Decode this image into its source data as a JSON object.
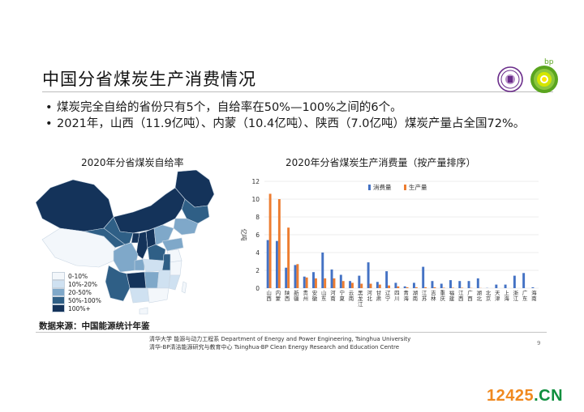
{
  "slide": {
    "title": "中国分省煤炭生产消费情况",
    "bullets": [
      "煤炭完全自给的省份只有5个，自给率在50%—100%之间的6个。",
      "2021年，山西（11.9亿吨）、内蒙（10.4亿吨）、陕西（7.0亿吨）煤炭产量占全国72%。"
    ],
    "source": "数据来源：中国能源统计年鉴",
    "footer": [
      "清华大学 能源与动力工程系  Department of Energy and Power Engineering, Tsinghua University",
      "清华-BP清洁能源研究与教育中心  Tsinghua-BP  Clean Energy Research and Education Centre"
    ],
    "page_number": "9",
    "logo_text": "bp",
    "watermark": {
      "num": "12425",
      "suffix": ".CN"
    }
  },
  "map": {
    "title": "2020年分省煤炭自给率",
    "legend": [
      {
        "label": "0-10%",
        "color": "#f3f7fb"
      },
      {
        "label": "10%-20%",
        "color": "#cfe1f1"
      },
      {
        "label": "20-50%",
        "color": "#7fa8c9"
      },
      {
        "label": "50%-100%",
        "color": "#2f5f86"
      },
      {
        "label": "100%+",
        "color": "#14335a"
      }
    ]
  },
  "chart_data": {
    "type": "bar",
    "title": "2020年分省煤炭生产消费量（按产量排序）",
    "ylabel": "亿吨",
    "ylim": [
      0,
      12
    ],
    "yticks": [
      0,
      2,
      4,
      6,
      8,
      10,
      12
    ],
    "legend_position": "top-center",
    "categories": [
      "山西",
      "内蒙",
      "陕西",
      "新疆",
      "贵州",
      "安徽",
      "山东",
      "河南",
      "宁夏",
      "云南",
      "黑龙江",
      "河北",
      "甘肃",
      "辽宁",
      "四川",
      "青海",
      "湖南",
      "江苏",
      "吉林",
      "重庆",
      "福建",
      "江西",
      "广西",
      "湖北",
      "北京",
      "天津",
      "上海",
      "浙江",
      "广东",
      "海南"
    ],
    "series": [
      {
        "name": "消费量",
        "color": "#4472c4",
        "values": [
          5.4,
          5.3,
          2.3,
          2.6,
          1.3,
          1.8,
          4.0,
          2.1,
          1.5,
          0.8,
          1.4,
          2.9,
          0.7,
          1.9,
          0.6,
          0.2,
          0.6,
          2.4,
          0.8,
          0.5,
          0.9,
          0.8,
          0.8,
          1.1,
          0.02,
          0.4,
          0.4,
          1.4,
          1.7,
          0.1
        ]
      },
      {
        "name": "生产量",
        "color": "#ed7d31",
        "values": [
          10.6,
          10.0,
          6.8,
          2.7,
          1.2,
          1.1,
          1.1,
          1.1,
          0.8,
          0.6,
          0.5,
          0.5,
          0.4,
          0.3,
          0.2,
          0.1,
          0.1,
          0.1,
          0.1,
          0.05,
          0.05,
          0.05,
          0.03,
          0.02,
          0.0,
          0.0,
          0.0,
          0.0,
          0.0,
          0.0
        ]
      }
    ]
  }
}
